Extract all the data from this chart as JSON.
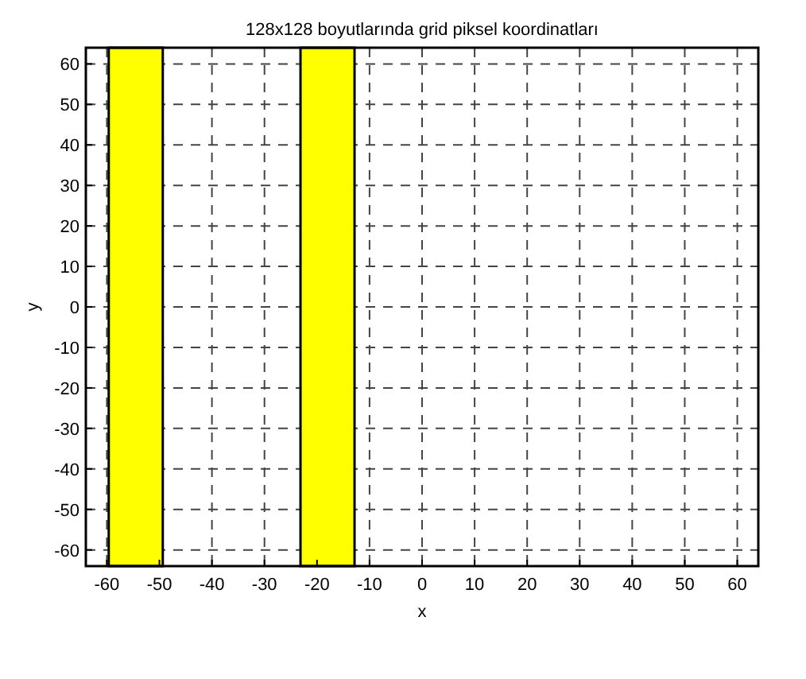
{
  "chart_data": {
    "type": "bar",
    "title": "128x128 boyutlarında grid piksel koordinatları",
    "xlabel": "x",
    "ylabel": "y",
    "xlim": [
      -64,
      64
    ],
    "ylim": [
      -64,
      64
    ],
    "xticks": [
      -60,
      -50,
      -40,
      -30,
      -20,
      -10,
      0,
      10,
      20,
      30,
      40,
      50,
      60
    ],
    "yticks": [
      -60,
      -50,
      -40,
      -30,
      -20,
      -10,
      0,
      10,
      20,
      30,
      40,
      50,
      60
    ],
    "grid": true,
    "x": [
      -54.5,
      -18
    ],
    "base": [
      -64,
      -64
    ],
    "values": [
      128,
      128
    ],
    "color": "#ffff00"
  }
}
